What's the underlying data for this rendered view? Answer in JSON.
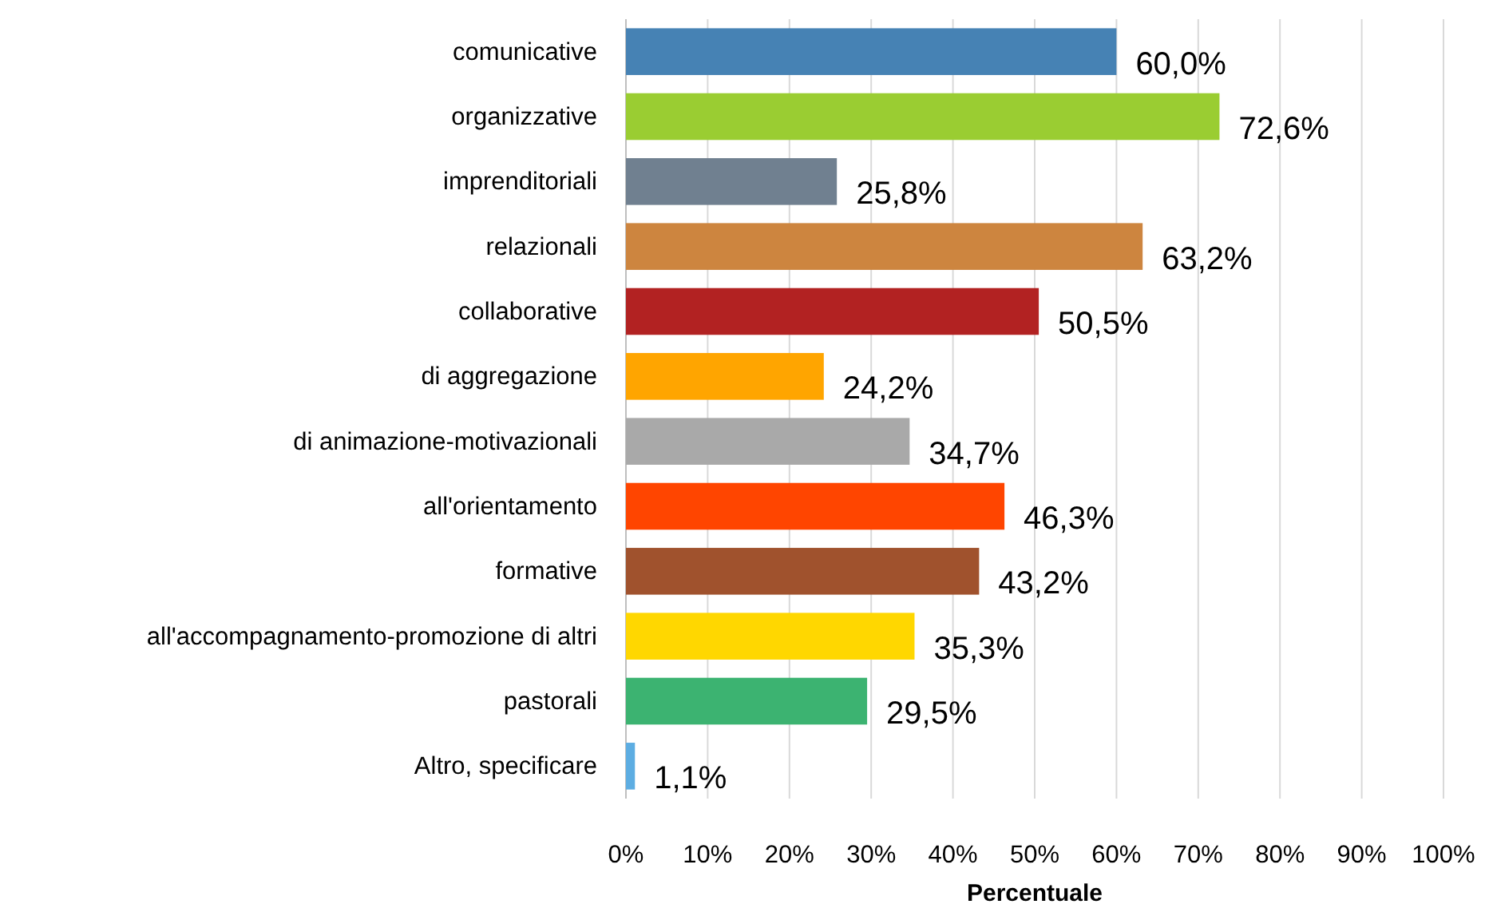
{
  "chart_data": {
    "type": "bar",
    "orientation": "horizontal",
    "xlabel": "Percentuale",
    "categories": [
      "comunicative",
      "organizzative",
      "imprenditoriali",
      "relazionali",
      "collaborative",
      "di aggregazione",
      "di animazione-motivazionali",
      "all'orientamento",
      "formative",
      "all'accompagnamento-promozione di altri",
      "pastorali",
      "Altro, specificare"
    ],
    "values": [
      60.0,
      72.6,
      25.8,
      63.2,
      50.5,
      24.2,
      34.7,
      46.3,
      43.2,
      35.3,
      29.5,
      1.1
    ],
    "colors": [
      "#4682b4",
      "#9acd32",
      "#708090",
      "#cd853f",
      "#b22222",
      "#ffa500",
      "#a9a9a9",
      "#ff4500",
      "#a0522d",
      "#ffd700",
      "#3cb371",
      "#5dade2"
    ],
    "value_labels": [
      "60,0%",
      "72,6%",
      "25,8%",
      "63,2%",
      "50,5%",
      "24,2%",
      "34,7%",
      "46,3%",
      "43,2%",
      "35,3%",
      "29,5%",
      "1,1%"
    ],
    "xlim": [
      0,
      100
    ],
    "xticks": [
      {
        "value": 0,
        "label": "0%"
      },
      {
        "value": 10,
        "label": "10%"
      },
      {
        "value": 20,
        "label": "20%"
      },
      {
        "value": 30,
        "label": "30%"
      },
      {
        "value": 40,
        "label": "40%"
      },
      {
        "value": 50,
        "label": "50%"
      },
      {
        "value": 60,
        "label": "60%"
      },
      {
        "value": 70,
        "label": "70%"
      },
      {
        "value": 80,
        "label": "80%"
      },
      {
        "value": 90,
        "label": "90%"
      },
      {
        "value": 100,
        "label": "100%"
      }
    ],
    "grid": "x"
  }
}
